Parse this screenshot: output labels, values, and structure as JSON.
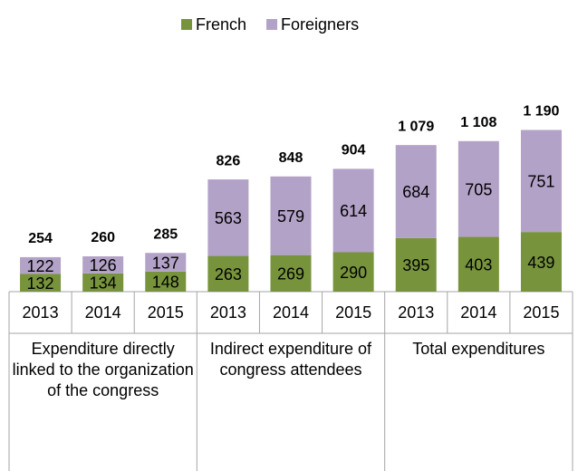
{
  "chart_data": {
    "type": "stacked_bar",
    "groups": [
      {
        "label": "Expenditure directly linked to the organization of the congress",
        "categories": [
          "2013",
          "2014",
          "2015"
        ]
      },
      {
        "label": "Indirect expenditure of congress attendees",
        "categories": [
          "2013",
          "2014",
          "2015"
        ]
      },
      {
        "label": "Total expenditures",
        "categories": [
          "2013",
          "2014",
          "2015"
        ]
      }
    ],
    "series": [
      {
        "name": "French",
        "color": "#77933c",
        "values": [
          132,
          134,
          148,
          263,
          269,
          290,
          395,
          403,
          439
        ]
      },
      {
        "name": "Foreigners",
        "color": "#b3a2c7",
        "values": [
          122,
          126,
          137,
          563,
          579,
          614,
          684,
          705,
          751
        ]
      }
    ],
    "totals": {
      "values": [
        254,
        260,
        285,
        826,
        848,
        904,
        1079,
        1108,
        1190
      ],
      "value_labels": [
        "254",
        "260",
        "285",
        "826",
        "848",
        "904",
        "1 079",
        "1 108",
        "1 190"
      ]
    },
    "ylim": [
      0,
      1400
    ],
    "legend": "top"
  }
}
